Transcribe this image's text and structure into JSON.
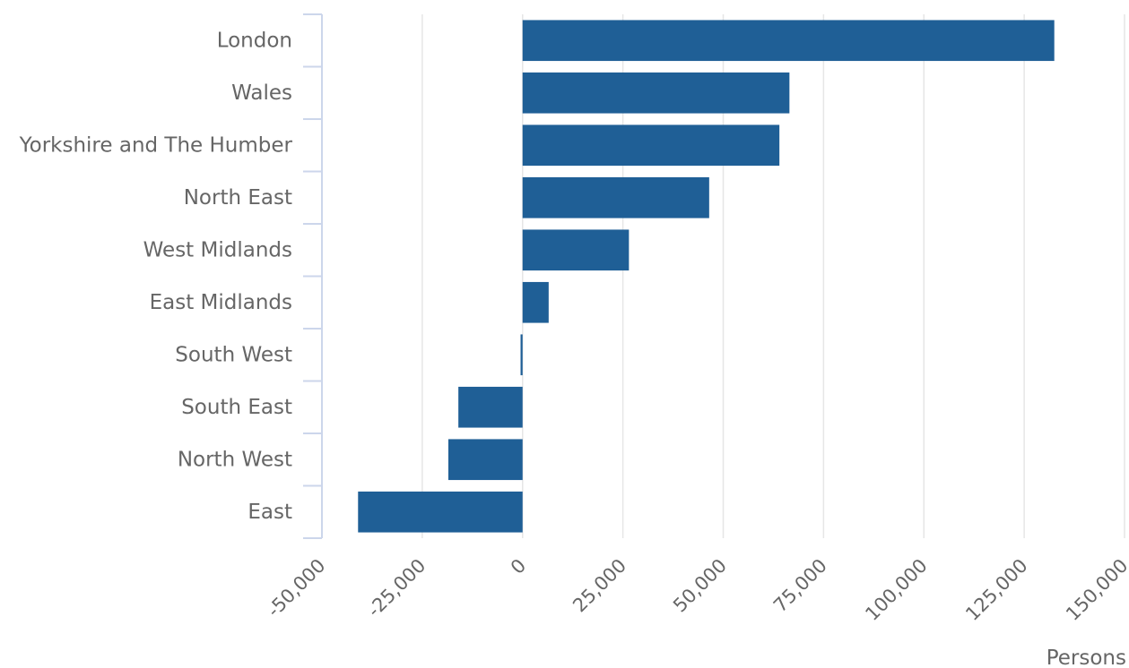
{
  "chart_data": {
    "type": "bar",
    "orientation": "horizontal",
    "categories": [
      "London",
      "Wales",
      "Yorkshire and The Humber",
      "North East",
      "West Midlands",
      "East Midlands",
      "South West",
      "South East",
      "North West",
      "East"
    ],
    "values": [
      132500,
      66500,
      64000,
      46500,
      26500,
      6500,
      -500,
      -16000,
      -18500,
      -41000
    ],
    "xlabel": "Persons",
    "xlim": [
      -50000,
      150000
    ],
    "xticks": [
      -50000,
      -25000,
      0,
      25000,
      50000,
      75000,
      100000,
      125000,
      150000
    ],
    "xtick_labels": [
      "-50,000",
      "-25,000",
      "0",
      "25,000",
      "50,000",
      "75,000",
      "100,000",
      "125,000",
      "150,000"
    ],
    "grid": "vertical",
    "colors": {
      "bar": "#1f5f96",
      "grid": "#e6e6e6",
      "axis": "#ccd6eb",
      "text": "#666666"
    }
  }
}
